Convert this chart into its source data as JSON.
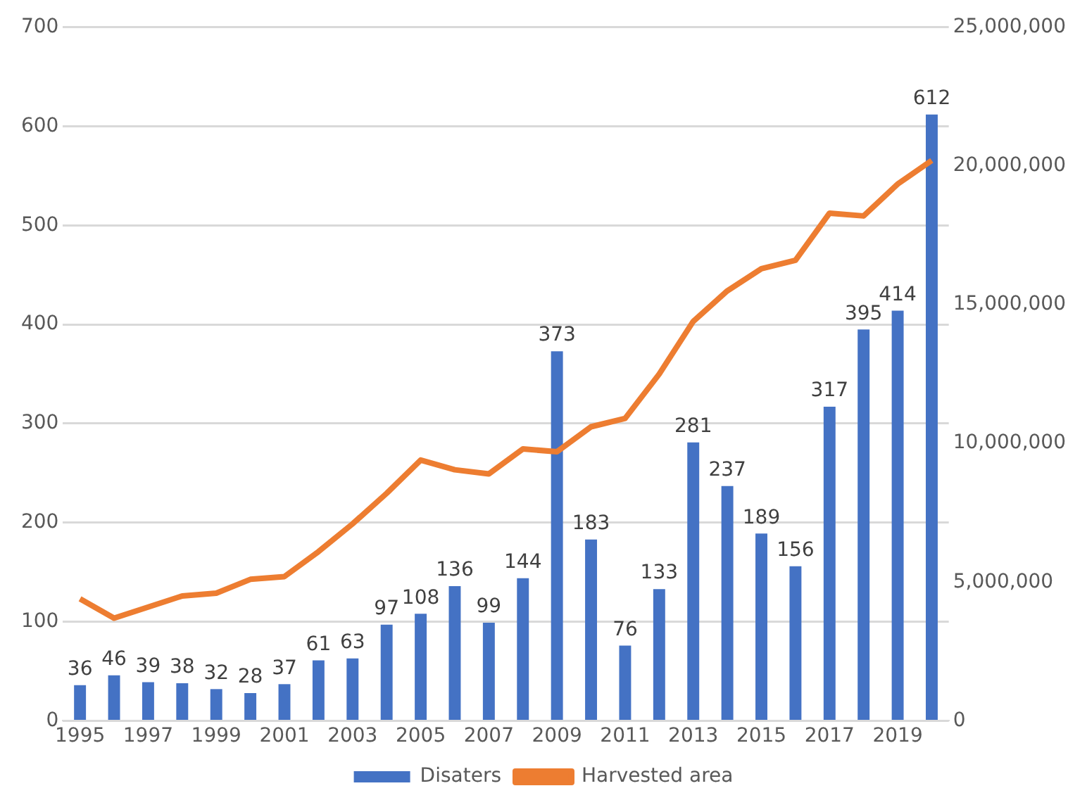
{
  "chart_data": {
    "type": "bar",
    "categories": [
      "1995",
      null,
      "1997",
      null,
      "1999",
      null,
      "2001",
      null,
      "2003",
      null,
      "2005",
      null,
      "2007",
      null,
      "2009",
      null,
      "2011",
      null,
      "2013",
      null,
      "2015",
      null,
      "2017",
      null,
      "2019",
      null
    ],
    "series": [
      {
        "name": "Disaters",
        "color": "#4472c4",
        "values": [
          36,
          46,
          39,
          38,
          32,
          28,
          37,
          61,
          63,
          97,
          108,
          136,
          99,
          144,
          373,
          183,
          76,
          133,
          281,
          237,
          189,
          156,
          317,
          395,
          414,
          612
        ],
        "value_labels": [
          "36",
          "46",
          "39",
          "38",
          "32",
          "28",
          "37",
          "61",
          "63",
          "97",
          "108",
          "136",
          "99",
          "144",
          "373",
          "183",
          "76",
          "133",
          "281",
          "237",
          "189",
          "156",
          "317",
          "395",
          "414",
          "612"
        ]
      },
      {
        "name": "Harvested area",
        "type": "line",
        "axis": "y2",
        "color": "#ed7d31",
        "values": [
          4400000,
          3700000,
          4100000,
          4500000,
          4600000,
          5100000,
          5200000,
          6100000,
          7100000,
          8200000,
          9400000,
          9050000,
          8900000,
          9800000,
          9700000,
          10600000,
          10900000,
          12500000,
          14400000,
          15500000,
          16300000,
          16600000,
          18300000,
          18200000,
          19350000,
          20200000
        ]
      }
    ],
    "ylim": [
      0,
      700
    ],
    "yticks": [
      0,
      100,
      200,
      300,
      400,
      500,
      600,
      700
    ],
    "y2lim": [
      0,
      25000000
    ],
    "y2ticks": [
      {
        "value": 0,
        "label": "0"
      },
      {
        "value": 5000000,
        "label": "5,000,000"
      },
      {
        "value": 10000000,
        "label": "10,000,000"
      },
      {
        "value": 15000000,
        "label": "15,000,000"
      },
      {
        "value": 20000000,
        "label": "20,000,000"
      },
      {
        "value": 25000000,
        "label": "25,000,000"
      }
    ],
    "grid": "y",
    "legend": "bottom",
    "marker": "none"
  }
}
